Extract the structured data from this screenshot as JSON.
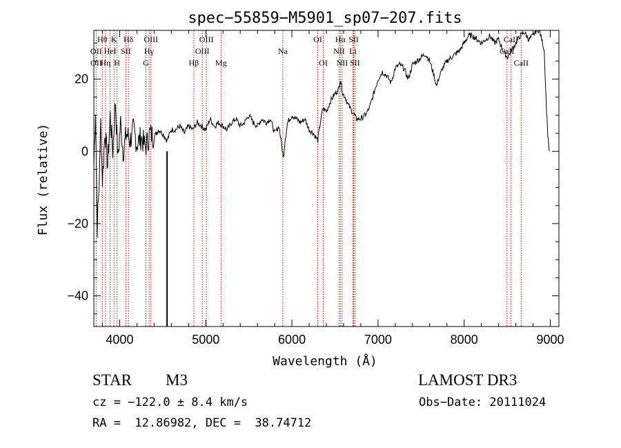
{
  "chart_data": {
    "type": "line",
    "title": "spec−55859−M5901_sp07−207.fits",
    "xlabel": "Wavelength (Å)",
    "ylabel": "Flux (relative)",
    "xlim": [
      3700,
      9100
    ],
    "ylim": [
      -48.5,
      33.5
    ],
    "x_ticks": [
      4000,
      5000,
      6000,
      7000,
      8000,
      9000
    ],
    "x_tick_labels": [
      "4000",
      "5000",
      "6000",
      "7000",
      "8000",
      "9000"
    ],
    "y_ticks": [
      20,
      0,
      -20,
      -40
    ],
    "y_tick_labels": [
      "20",
      "0",
      "−20",
      "−40"
    ],
    "series": [
      {
        "name": "flux",
        "x": [
          3700,
          3720,
          3740,
          3760,
          3780,
          3800,
          3830,
          3860,
          3890,
          3920,
          3950,
          3980,
          4010,
          4040,
          4080,
          4120,
          4160,
          4200,
          4250,
          4300,
          4350,
          4400,
          4450,
          4500,
          4550,
          4600,
          4650,
          4700,
          4750,
          4800,
          4850,
          4900,
          4950,
          5000,
          5050,
          5100,
          5150,
          5200,
          5250,
          5300,
          5350,
          5400,
          5450,
          5500,
          5550,
          5600,
          5650,
          5700,
          5750,
          5800,
          5850,
          5880,
          5900,
          5920,
          5950,
          6000,
          6050,
          6100,
          6150,
          6200,
          6250,
          6300,
          6330,
          6360,
          6400,
          6450,
          6500,
          6540,
          6563,
          6590,
          6620,
          6650,
          6700,
          6750,
          6800,
          6850,
          6900,
          6950,
          7000,
          7050,
          7100,
          7150,
          7200,
          7250,
          7300,
          7350,
          7400,
          7450,
          7500,
          7550,
          7600,
          7650,
          7680,
          7700,
          7750,
          7800,
          7850,
          7900,
          7950,
          8000,
          8050,
          8100,
          8150,
          8200,
          8250,
          8300,
          8350,
          8400,
          8450,
          8500,
          8550,
          8600,
          8650,
          8700,
          8750,
          8800,
          8850,
          8880,
          8900,
          8930,
          8950,
          8970,
          8990
        ],
        "y": [
          -4,
          12,
          -21,
          -10,
          8,
          -8,
          6,
          -4,
          10,
          0,
          14,
          -2,
          8,
          0,
          5,
          3,
          6,
          2,
          4,
          1,
          5,
          4,
          6,
          5,
          3,
          6,
          6,
          7,
          5,
          7,
          6,
          8,
          7,
          6,
          9,
          7,
          8,
          7,
          6,
          8,
          9,
          7,
          8,
          10,
          8,
          7,
          9,
          8,
          9,
          5,
          7,
          2,
          -2,
          3,
          8,
          10,
          9,
          8,
          9,
          6,
          5,
          3,
          8,
          12,
          11,
          14,
          16,
          17,
          20,
          16,
          15,
          13,
          11,
          9,
          9,
          10,
          12,
          16,
          20,
          22,
          21,
          19,
          23,
          24,
          23,
          20,
          24,
          25,
          26,
          27,
          25,
          21,
          18,
          20,
          23,
          25,
          26,
          27,
          28,
          30,
          32,
          32,
          31,
          30,
          31,
          32,
          30,
          31,
          28,
          26,
          28,
          30,
          32,
          33,
          31,
          32,
          34,
          33,
          31,
          28,
          15,
          5,
          0
        ]
      }
    ],
    "spike": {
      "x": 4550,
      "y_top": 0,
      "y_bottom": -48.5
    },
    "line_markers": [
      {
        "label": "Hθ",
        "x": 3798,
        "row": 1
      },
      {
        "label": "OII",
        "x": 3727,
        "row": 2
      },
      {
        "label": "OII",
        "x": 3727,
        "row": 3
      },
      {
        "label": "Hη",
        "x": 3835,
        "row": 3
      },
      {
        "label": "HeI",
        "x": 3889,
        "row": 2
      },
      {
        "label": "K",
        "x": 3934,
        "row": 1
      },
      {
        "label": "H",
        "x": 3969,
        "row": 3
      },
      {
        "label": "SII",
        "x": 4072,
        "row": 2
      },
      {
        "label": "Hδ",
        "x": 4102,
        "row": 1
      },
      {
        "label": "G",
        "x": 4305,
        "row": 3
      },
      {
        "label": "Hγ",
        "x": 4341,
        "row": 2
      },
      {
        "label": "OIII",
        "x": 4363,
        "row": 1
      },
      {
        "label": "Hβ",
        "x": 4861,
        "row": 3
      },
      {
        "label": "OIII",
        "x": 4959,
        "row": 2
      },
      {
        "label": "OIII",
        "x": 5007,
        "row": 1
      },
      {
        "label": "Mg",
        "x": 5177,
        "row": 3
      },
      {
        "label": "Na",
        "x": 5894,
        "row": 2
      },
      {
        "label": "OI",
        "x": 6300,
        "row": 1
      },
      {
        "label": "OI",
        "x": 6364,
        "row": 3
      },
      {
        "label": "NII",
        "x": 6548,
        "row": 2
      },
      {
        "label": "Hα",
        "x": 6563,
        "row": 1
      },
      {
        "label": "NII",
        "x": 6583,
        "row": 3
      },
      {
        "label": "SII",
        "x": 6716,
        "row": 1
      },
      {
        "label": "Li",
        "x": 6708,
        "row": 2
      },
      {
        "label": "SII",
        "x": 6731,
        "row": 3
      },
      {
        "label": "CaII",
        "x": 8498,
        "row": 2
      },
      {
        "label": "CaII",
        "x": 8542,
        "row": 1
      },
      {
        "label": "CaII",
        "x": 8662,
        "row": 3
      }
    ]
  },
  "info": {
    "object_class": "STAR",
    "subclass": "M3",
    "survey": "LAMOST DR3",
    "redshift_line": "cz = −122.0 ± 8.4 km/s",
    "obs_date": "Obs−Date: 20111024",
    "coords": "RA =  12.86982, DEC =  38.74712"
  },
  "colors": {
    "marker_line": "#cc0000",
    "axis": "#000000",
    "flux": "#000000"
  }
}
